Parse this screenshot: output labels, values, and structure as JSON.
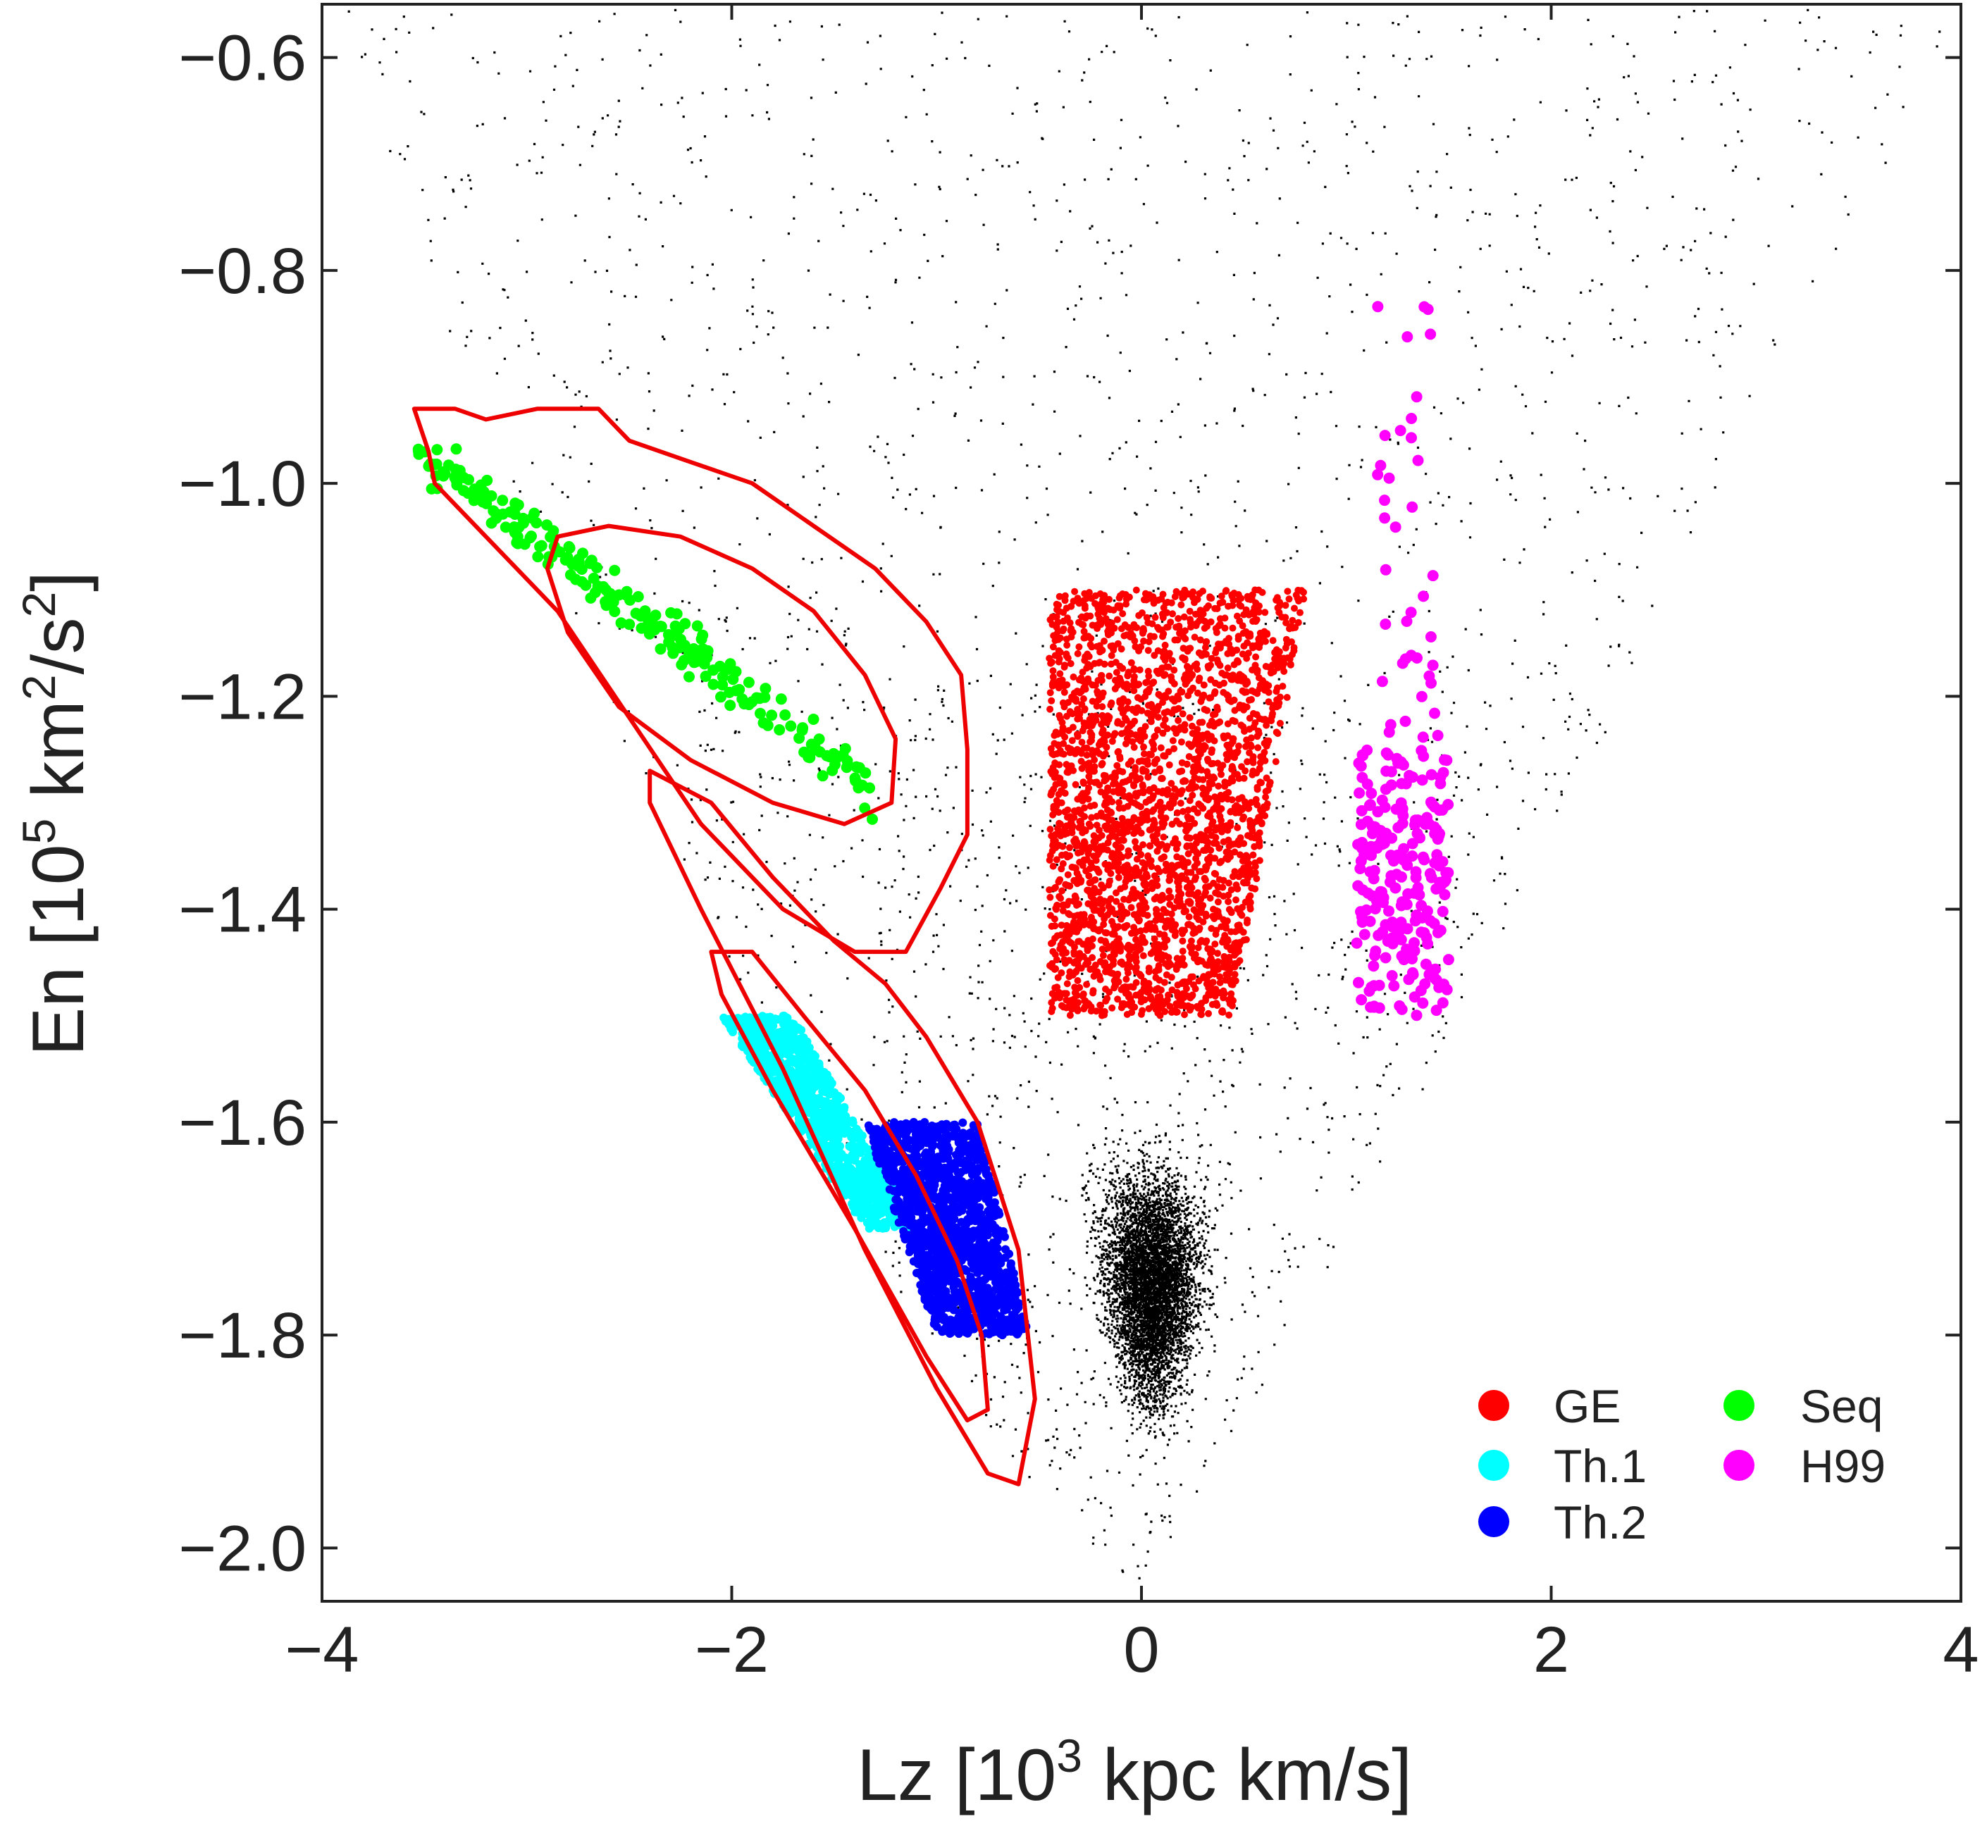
{
  "chart_data": {
    "type": "scatter",
    "title": "",
    "xlabel": {
      "pre": "Lz [10",
      "sup": "3",
      "post": " kpc km/s]"
    },
    "ylabel": {
      "pre": "En [10",
      "sup": "5",
      "mid": " km",
      "sup2": "2",
      "post": "/s",
      "sup3": "2",
      "end": "]"
    },
    "xlim": [
      -4,
      4
    ],
    "ylim": [
      -2.05,
      -0.55
    ],
    "xticks": [
      -4,
      -2,
      0,
      2,
      4
    ],
    "xtick_labels": [
      "−4",
      "−2",
      "0",
      "2",
      "4"
    ],
    "yticks": [
      -2.0,
      -1.8,
      -1.6,
      -1.4,
      -1.2,
      -1.0,
      -0.8,
      -0.6
    ],
    "ytick_labels": [
      "−2.0",
      "−1.8",
      "−1.6",
      "−1.4",
      "−1.2",
      "−1.0",
      "−0.8",
      "−0.6"
    ],
    "grid": false,
    "legend_position": "bottom-right",
    "legend_columns": 2,
    "background_population": {
      "color": "#000000",
      "description_of_shape": "V-shaped envelope between roughly Lz = -0.6*(En+2.05)^0.5 boundaries",
      "apex": [
        0.0,
        -2.03
      ],
      "left_edge": [
        [
          0.0,
          -2.03
        ],
        [
          -1.0,
          -1.72
        ],
        [
          -2.0,
          -1.35
        ],
        [
          -3.0,
          -1.05
        ],
        [
          -4.0,
          -0.75
        ]
      ],
      "right_edge": [
        [
          0.0,
          -2.03
        ],
        [
          1.0,
          -1.6
        ],
        [
          1.8,
          -1.35
        ],
        [
          2.4,
          -1.2
        ],
        [
          4.0,
          -0.55
        ]
      ],
      "dense_core": {
        "lz_center": 0.0,
        "en_center": -1.75
      }
    },
    "series": [
      {
        "name": "GE",
        "color": "#ff0000",
        "region": {
          "lz": [
            -0.45,
            0.45
          ],
          "en_top": -1.1,
          "en_bottom": -1.5,
          "lz_top": [
            -0.45,
            0.8
          ],
          "lz_bottom": [
            -0.45,
            0.45
          ]
        }
      },
      {
        "name": "Th.1",
        "color": "#00ffff",
        "region": {
          "polygon": [
            [
              -2.05,
              -1.5
            ],
            [
              -1.7,
              -1.5
            ],
            [
              -1.1,
              -1.7
            ],
            [
              -1.35,
              -1.7
            ]
          ]
        }
      },
      {
        "name": "Th.2",
        "color": "#0000ff",
        "region": {
          "polygon": [
            [
              -1.35,
              -1.6
            ],
            [
              -0.8,
              -1.6
            ],
            [
              -0.55,
              -1.8
            ],
            [
              -1.0,
              -1.8
            ]
          ]
        }
      },
      {
        "name": "Seq",
        "color": "#00ff00",
        "region": {
          "center": [
            -2.2,
            -1.15
          ],
          "extent": [
            [
              -3.7,
              -0.97
            ],
            [
              -1.3,
              -1.3
            ]
          ]
        }
      },
      {
        "name": "H99",
        "color": "#ff00ff",
        "region": {
          "column_lz": [
            1.0,
            1.5
          ],
          "en_range": [
            -1.54,
            -0.83
          ],
          "dense_en": [
            -1.5,
            -1.25
          ]
        }
      }
    ],
    "contours": [
      {
        "name": "outer",
        "color": "#ee0000",
        "points": [
          [
            -3.55,
            -0.93
          ],
          [
            -3.35,
            -0.93
          ],
          [
            -3.2,
            -0.94
          ],
          [
            -2.95,
            -0.93
          ],
          [
            -2.65,
            -0.93
          ],
          [
            -2.5,
            -0.96
          ],
          [
            -2.2,
            -0.98
          ],
          [
            -1.9,
            -1.0
          ],
          [
            -1.6,
            -1.04
          ],
          [
            -1.3,
            -1.08
          ],
          [
            -1.05,
            -1.13
          ],
          [
            -0.88,
            -1.18
          ],
          [
            -0.85,
            -1.25
          ],
          [
            -0.85,
            -1.33
          ],
          [
            -0.98,
            -1.38
          ],
          [
            -1.15,
            -1.44
          ],
          [
            -1.4,
            -1.44
          ],
          [
            -1.75,
            -1.4
          ],
          [
            -2.15,
            -1.32
          ],
          [
            -2.5,
            -1.22
          ],
          [
            -2.85,
            -1.12
          ],
          [
            -3.2,
            -1.05
          ],
          [
            -3.45,
            -1.0
          ],
          [
            -3.48,
            -0.97
          ],
          [
            -3.55,
            -0.93
          ]
        ]
      },
      {
        "name": "inner",
        "color": "#ee0000",
        "points": [
          [
            -2.85,
            -1.05
          ],
          [
            -2.6,
            -1.04
          ],
          [
            -2.25,
            -1.05
          ],
          [
            -1.9,
            -1.08
          ],
          [
            -1.6,
            -1.12
          ],
          [
            -1.35,
            -1.18
          ],
          [
            -1.2,
            -1.24
          ],
          [
            -1.22,
            -1.3
          ],
          [
            -1.45,
            -1.32
          ],
          [
            -1.8,
            -1.3
          ],
          [
            -2.2,
            -1.26
          ],
          [
            -2.55,
            -1.21
          ],
          [
            -2.8,
            -1.14
          ],
          [
            -2.9,
            -1.08
          ],
          [
            -2.85,
            -1.05
          ]
        ]
      },
      {
        "name": "lower-outer",
        "color": "#ee0000",
        "points": [
          [
            -2.4,
            -1.27
          ],
          [
            -2.1,
            -1.3
          ],
          [
            -1.8,
            -1.37
          ],
          [
            -1.5,
            -1.43
          ],
          [
            -1.25,
            -1.47
          ],
          [
            -1.05,
            -1.52
          ],
          [
            -0.8,
            -1.6
          ],
          [
            -0.6,
            -1.72
          ],
          [
            -0.52,
            -1.86
          ],
          [
            -0.6,
            -1.94
          ],
          [
            -0.75,
            -1.93
          ],
          [
            -1.0,
            -1.85
          ],
          [
            -1.35,
            -1.72
          ],
          [
            -1.75,
            -1.55
          ],
          [
            -2.15,
            -1.4
          ],
          [
            -2.4,
            -1.3
          ],
          [
            -2.4,
            -1.27
          ]
        ]
      },
      {
        "name": "lower-inner",
        "color": "#ee0000",
        "points": [
          [
            -2.1,
            -1.44
          ],
          [
            -1.9,
            -1.44
          ],
          [
            -1.65,
            -1.5
          ],
          [
            -1.35,
            -1.57
          ],
          [
            -1.1,
            -1.65
          ],
          [
            -0.9,
            -1.73
          ],
          [
            -0.78,
            -1.8
          ],
          [
            -0.75,
            -1.87
          ],
          [
            -0.85,
            -1.88
          ],
          [
            -1.05,
            -1.82
          ],
          [
            -1.4,
            -1.7
          ],
          [
            -1.8,
            -1.57
          ],
          [
            -2.05,
            -1.48
          ],
          [
            -2.1,
            -1.44
          ]
        ]
      }
    ],
    "legend": [
      {
        "label": "GE",
        "color": "#ff0000"
      },
      {
        "label": "Seq",
        "color": "#00ff00"
      },
      {
        "label": "Th.1",
        "color": "#00ffff"
      },
      {
        "label": "H99",
        "color": "#ff00ff"
      },
      {
        "label": "Th.2",
        "color": "#0000ff"
      }
    ]
  }
}
